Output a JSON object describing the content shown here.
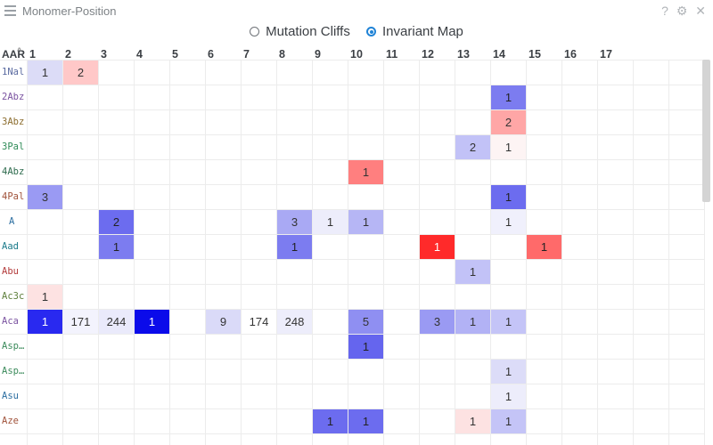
{
  "window": {
    "title": "Monomer-Position",
    "icons": [
      "help-icon",
      "settings-gear-icon",
      "close-icon"
    ]
  },
  "radios": [
    {
      "label": "Mutation Cliffs",
      "selected": false
    },
    {
      "label": "Invariant Map",
      "selected": true
    }
  ],
  "grid": {
    "corner_label": "AAR",
    "columns": [
      "1",
      "2",
      "3",
      "4",
      "5",
      "6",
      "7",
      "8",
      "9",
      "10",
      "11",
      "12",
      "13",
      "14",
      "15",
      "16",
      "17"
    ],
    "rows": [
      {
        "label": "1Nal",
        "color": "#5a6aa0"
      },
      {
        "label": "2Abz",
        "color": "#7a52a0"
      },
      {
        "label": "3Abz",
        "color": "#8c6d2e"
      },
      {
        "label": "3Pal",
        "color": "#2e8b57"
      },
      {
        "label": "4Abz",
        "color": "#2e6b4e"
      },
      {
        "label": "4Pal",
        "color": "#a0523a"
      },
      {
        "label": "A",
        "color": "#2a6da0"
      },
      {
        "label": "Aad",
        "color": "#1a7a8a"
      },
      {
        "label": "Abu",
        "color": "#b33a3a"
      },
      {
        "label": "Ac3c",
        "color": "#5e7f3b"
      },
      {
        "label": "Aca",
        "color": "#7a52a0"
      },
      {
        "label": "Asp…",
        "color": "#3a8a5a"
      },
      {
        "label": "Asp…",
        "color": "#3a8a5a"
      },
      {
        "label": "Asu",
        "color": "#2a6da0"
      },
      {
        "label": "Aze",
        "color": "#a0523a"
      }
    ],
    "cells": [
      {
        "row": 0,
        "col": 0,
        "value": "1",
        "bg": "#dcdcf7",
        "fg": "#333"
      },
      {
        "row": 0,
        "col": 1,
        "value": "2",
        "bg": "#ffc8c8",
        "fg": "#333"
      },
      {
        "row": 1,
        "col": 13,
        "value": "1",
        "bg": "#7c7cf0",
        "fg": "#222"
      },
      {
        "row": 2,
        "col": 13,
        "value": "2",
        "bg": "#ffa6a6",
        "fg": "#333"
      },
      {
        "row": 3,
        "col": 12,
        "value": "2",
        "bg": "#c2c2f7",
        "fg": "#333"
      },
      {
        "row": 3,
        "col": 13,
        "value": "1",
        "bg": "#fdf4f4",
        "fg": "#333"
      },
      {
        "row": 4,
        "col": 9,
        "value": "1",
        "bg": "#ff7f7f",
        "fg": "#333"
      },
      {
        "row": 5,
        "col": 0,
        "value": "3",
        "bg": "#9a9af3",
        "fg": "#333"
      },
      {
        "row": 5,
        "col": 13,
        "value": "1",
        "bg": "#6c6cef",
        "fg": "#222"
      },
      {
        "row": 6,
        "col": 2,
        "value": "2",
        "bg": "#6c6cef",
        "fg": "#222"
      },
      {
        "row": 6,
        "col": 7,
        "value": "3",
        "bg": "#a9a9f4",
        "fg": "#333"
      },
      {
        "row": 6,
        "col": 8,
        "value": "1",
        "bg": "#ededfb",
        "fg": "#333"
      },
      {
        "row": 6,
        "col": 9,
        "value": "1",
        "bg": "#b6b6f5",
        "fg": "#333"
      },
      {
        "row": 6,
        "col": 13,
        "value": "1",
        "bg": "#f0f0fc",
        "fg": "#333"
      },
      {
        "row": 7,
        "col": 2,
        "value": "1",
        "bg": "#7c7cf0",
        "fg": "#222"
      },
      {
        "row": 7,
        "col": 7,
        "value": "1",
        "bg": "#7c7cf0",
        "fg": "#222"
      },
      {
        "row": 7,
        "col": 11,
        "value": "1",
        "bg": "#ff2a2a",
        "fg": "#fff"
      },
      {
        "row": 7,
        "col": 14,
        "value": "1",
        "bg": "#ff6a6a",
        "fg": "#222"
      },
      {
        "row": 8,
        "col": 12,
        "value": "1",
        "bg": "#c2c2f7",
        "fg": "#333"
      },
      {
        "row": 9,
        "col": 0,
        "value": "1",
        "bg": "#fde2e2",
        "fg": "#333"
      },
      {
        "row": 10,
        "col": 0,
        "value": "1",
        "bg": "#2929f0",
        "fg": "#fff"
      },
      {
        "row": 10,
        "col": 1,
        "value": "171",
        "bg": "#f3f3fd",
        "fg": "#333"
      },
      {
        "row": 10,
        "col": 2,
        "value": "244",
        "bg": "#eaeafb",
        "fg": "#333"
      },
      {
        "row": 10,
        "col": 3,
        "value": "1",
        "bg": "#0b0bea",
        "fg": "#fff"
      },
      {
        "row": 10,
        "col": 5,
        "value": "9",
        "bg": "#dadaf8",
        "fg": "#333"
      },
      {
        "row": 10,
        "col": 6,
        "value": "174",
        "bg": "#ffffff",
        "fg": "#333"
      },
      {
        "row": 10,
        "col": 7,
        "value": "248",
        "bg": "#ededfb",
        "fg": "#333"
      },
      {
        "row": 10,
        "col": 9,
        "value": "5",
        "bg": "#8f8ff2",
        "fg": "#333"
      },
      {
        "row": 10,
        "col": 11,
        "value": "3",
        "bg": "#9a9af3",
        "fg": "#333"
      },
      {
        "row": 10,
        "col": 12,
        "value": "1",
        "bg": "#b2b2f5",
        "fg": "#333"
      },
      {
        "row": 10,
        "col": 13,
        "value": "1",
        "bg": "#c4c4f7",
        "fg": "#333"
      },
      {
        "row": 11,
        "col": 9,
        "value": "1",
        "bg": "#6565ee",
        "fg": "#222"
      },
      {
        "row": 12,
        "col": 13,
        "value": "1",
        "bg": "#dcdcf8",
        "fg": "#333"
      },
      {
        "row": 13,
        "col": 13,
        "value": "1",
        "bg": "#ededfb",
        "fg": "#333"
      },
      {
        "row": 14,
        "col": 8,
        "value": "1",
        "bg": "#6c6cef",
        "fg": "#222"
      },
      {
        "row": 14,
        "col": 9,
        "value": "1",
        "bg": "#6c6cef",
        "fg": "#222"
      },
      {
        "row": 14,
        "col": 12,
        "value": "1",
        "bg": "#fde2e2",
        "fg": "#333"
      },
      {
        "row": 14,
        "col": 13,
        "value": "1",
        "bg": "#c4c4f7",
        "fg": "#333"
      }
    ]
  }
}
